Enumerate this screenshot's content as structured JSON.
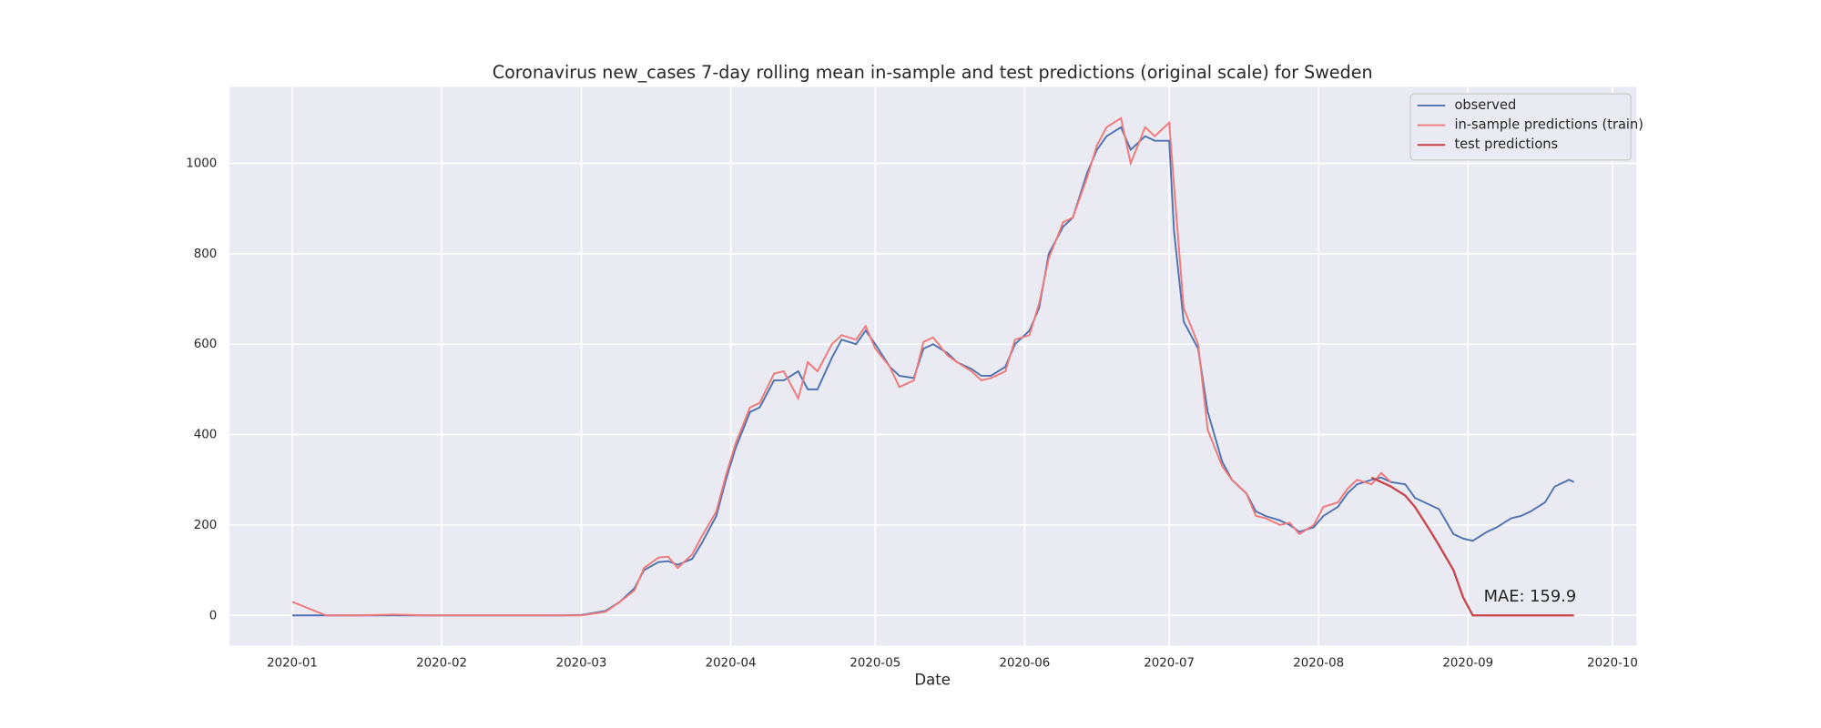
{
  "chart_data": {
    "type": "line",
    "title": "Coronavirus new_cases 7-day rolling mean in-sample and test predictions (original scale) for Sweden",
    "x_label": "Date",
    "xlim": [
      -13,
      279
    ],
    "ylim": [
      -67,
      1169
    ],
    "xticks": [
      {
        "value": 0,
        "label": "2020-01"
      },
      {
        "value": 31,
        "label": "2020-02"
      },
      {
        "value": 60,
        "label": "2020-03"
      },
      {
        "value": 91,
        "label": "2020-04"
      },
      {
        "value": 121,
        "label": "2020-05"
      },
      {
        "value": 152,
        "label": "2020-06"
      },
      {
        "value": 182,
        "label": "2020-07"
      },
      {
        "value": 213,
        "label": "2020-08"
      },
      {
        "value": 244,
        "label": "2020-09"
      },
      {
        "value": 274,
        "label": "2020-10"
      }
    ],
    "yticks": [
      0,
      200,
      400,
      600,
      800,
      1000
    ],
    "grid": true,
    "legend": "upper right",
    "annotation": "MAE: 159.9",
    "series": [
      {
        "name": "observed",
        "color": "#4c72b0",
        "x": [
          0,
          7,
          14,
          21,
          28,
          35,
          42,
          49,
          56,
          60,
          65,
          68,
          71,
          73,
          76,
          78,
          80,
          83,
          85,
          88,
          90,
          92,
          95,
          97,
          100,
          102,
          105,
          107,
          109,
          112,
          114,
          117,
          119,
          121,
          124,
          126,
          129,
          131,
          133,
          136,
          138,
          141,
          143,
          145,
          148,
          150,
          153,
          155,
          157,
          160,
          162,
          165,
          167,
          169,
          172,
          174,
          177,
          179,
          182,
          183,
          185,
          188,
          190,
          193,
          195,
          198,
          200,
          202,
          205,
          207,
          209,
          212,
          214,
          217,
          219,
          221,
          224,
          226,
          228,
          231,
          233,
          236,
          238,
          241,
          243,
          245,
          248,
          250,
          253,
          255,
          257,
          260,
          262,
          265,
          266
        ],
        "values": [
          0,
          0,
          0,
          0,
          0,
          0,
          0,
          0,
          0,
          1,
          10,
          30,
          60,
          100,
          118,
          120,
          112,
          125,
          160,
          220,
          300,
          370,
          450,
          460,
          520,
          520,
          540,
          500,
          500,
          570,
          610,
          600,
          630,
          600,
          550,
          530,
          525,
          590,
          600,
          580,
          560,
          545,
          530,
          530,
          550,
          600,
          630,
          680,
          800,
          860,
          880,
          980,
          1030,
          1060,
          1080,
          1030,
          1060,
          1050,
          1050,
          850,
          650,
          590,
          450,
          340,
          300,
          270,
          230,
          220,
          210,
          200,
          185,
          195,
          220,
          240,
          270,
          290,
          300,
          305,
          295,
          290,
          260,
          245,
          235,
          180,
          170,
          165,
          185,
          195,
          215,
          220,
          230,
          250,
          285,
          300,
          295
        ]
      },
      {
        "name": "in-sample predictions (train)",
        "color": "#f07878",
        "x": [
          0,
          7,
          14,
          21,
          28,
          35,
          42,
          49,
          56,
          60,
          65,
          68,
          71,
          73,
          76,
          78,
          80,
          83,
          85,
          88,
          90,
          92,
          95,
          97,
          100,
          102,
          105,
          107,
          109,
          112,
          114,
          117,
          119,
          121,
          124,
          126,
          129,
          131,
          133,
          136,
          138,
          141,
          143,
          145,
          148,
          150,
          153,
          155,
          157,
          160,
          162,
          165,
          167,
          169,
          172,
          174,
          177,
          179,
          182,
          183,
          185,
          188,
          190,
          193,
          195,
          198,
          200,
          202,
          205,
          207,
          209,
          212,
          214,
          217,
          219,
          221,
          224,
          226,
          228
        ],
        "values": [
          30,
          0,
          0,
          2,
          0,
          0,
          0,
          0,
          0,
          0,
          8,
          30,
          55,
          105,
          128,
          130,
          105,
          135,
          175,
          230,
          310,
          380,
          460,
          470,
          535,
          540,
          480,
          560,
          540,
          600,
          620,
          610,
          640,
          590,
          550,
          505,
          520,
          605,
          615,
          575,
          560,
          540,
          520,
          525,
          540,
          610,
          620,
          690,
          790,
          870,
          880,
          970,
          1040,
          1080,
          1100,
          1000,
          1080,
          1060,
          1090,
          950,
          680,
          600,
          410,
          330,
          300,
          270,
          220,
          215,
          200,
          205,
          180,
          200,
          240,
          250,
          280,
          300,
          290,
          315,
          295
        ]
      },
      {
        "name": "test predictions",
        "color": "#c8414b",
        "x": [
          224,
          226,
          228,
          231,
          233,
          236,
          238,
          241,
          243,
          245,
          250,
          255,
          260,
          266
        ],
        "values": [
          305,
          295,
          285,
          265,
          240,
          190,
          155,
          100,
          40,
          0,
          0,
          0,
          0,
          0
        ]
      }
    ]
  }
}
